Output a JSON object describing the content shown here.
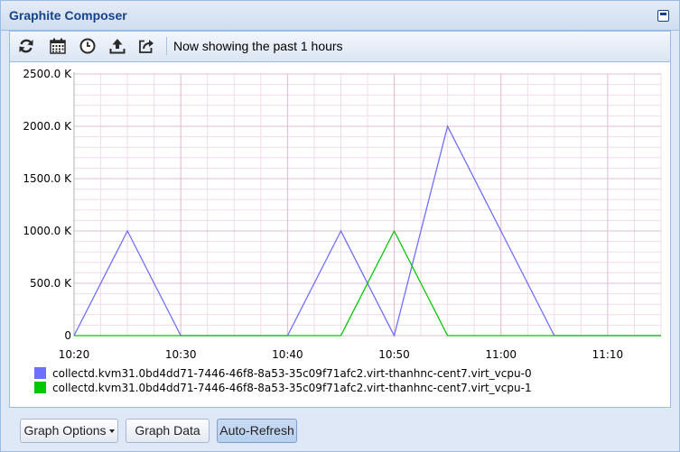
{
  "window": {
    "title": "Graphite Composer"
  },
  "toolbar": {
    "buttons": [
      {
        "name": "refresh-icon"
      },
      {
        "name": "calendar-icon"
      },
      {
        "name": "clock-icon"
      },
      {
        "name": "upload-icon"
      },
      {
        "name": "share-icon"
      }
    ],
    "status": "Now showing the past 1 hours"
  },
  "chart_data": {
    "type": "line",
    "x": [
      "10:20",
      "10:25",
      "10:30",
      "10:35",
      "10:40",
      "10:45",
      "10:50",
      "10:55",
      "11:00",
      "11:05",
      "11:10",
      "11:15"
    ],
    "xticks": [
      "10:20",
      "10:30",
      "10:40",
      "10:50",
      "11:00",
      "11:10"
    ],
    "yticks": [
      "0",
      "500.0 K",
      "1000.0 K",
      "1500.0 K",
      "2000.0 K",
      "2500.0 K"
    ],
    "ylim": [
      0,
      2500
    ],
    "yunit": "K",
    "grid": true,
    "legend_position": "bottom-left",
    "series": [
      {
        "name": "collectd.kvm31.0bd4dd71-7446-46f8-8a53-35c09f71afc2.virt-thanhnc-cent7.virt_vcpu-0",
        "color": "#6f6fff",
        "values": [
          0,
          1000,
          0,
          0,
          0,
          1000,
          0,
          2000,
          1000,
          0,
          0,
          0
        ]
      },
      {
        "name": "collectd.kvm31.0bd4dd71-7446-46f8-8a53-35c09f71afc2.virt-thanhnc-cent7.virt_vcpu-1",
        "color": "#00c800",
        "values": [
          0,
          0,
          0,
          0,
          0,
          0,
          1000,
          0,
          0,
          0,
          0,
          0
        ]
      }
    ]
  },
  "bottom": {
    "graph_options": "Graph Options",
    "graph_data": "Graph Data",
    "auto_refresh": "Auto-Refresh"
  }
}
